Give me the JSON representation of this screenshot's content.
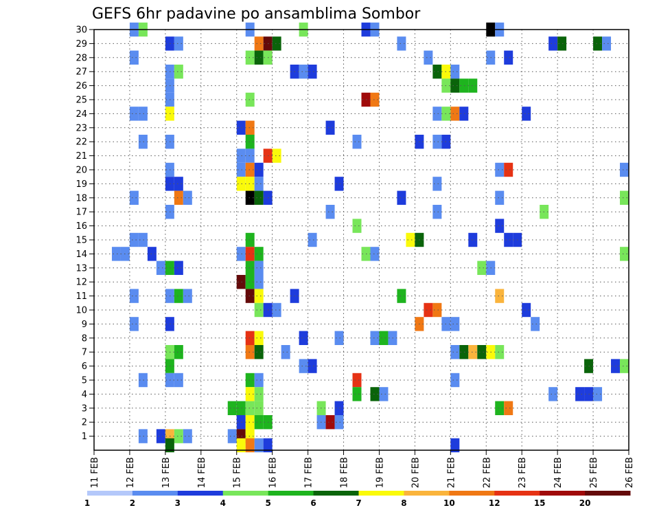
{
  "chart_data": {
    "type": "heatmap",
    "title": "GEFS 6hr padavine po ansamblima Sombor",
    "xlabel": "",
    "ylabel": "",
    "x_tick_labels": [
      "11 FEB",
      "12 FEB",
      "13 FEB",
      "14 FEB",
      "15 FEB",
      "16 FEB",
      "17 FEB",
      "18 FEB",
      "19 FEB",
      "20 FEB",
      "21 FEB",
      "22 FEB",
      "23 FEB",
      "24 FEB",
      "25 FEB",
      "26 FEB"
    ],
    "y_tick_labels": [
      "1",
      "2",
      "3",
      "4",
      "5",
      "6",
      "7",
      "8",
      "9",
      "10",
      "11",
      "12",
      "13",
      "14",
      "15",
      "16",
      "17",
      "18",
      "19",
      "20",
      "21",
      "22",
      "23",
      "24",
      "25",
      "26",
      "27",
      "28",
      "29",
      "30"
    ],
    "x_unit": "day (6-hourly steps, 4 per day)",
    "xlim": [
      0,
      15
    ],
    "ylim": [
      0,
      30
    ],
    "grid": true,
    "colorbar": {
      "placement": "bottom",
      "labels": [
        "1",
        "2",
        "3",
        "4",
        "5",
        "6",
        "7",
        "8",
        "10",
        "12",
        "15",
        "20"
      ],
      "colors": [
        "#b4c8fa",
        "#5a8cf0",
        "#1e3cdc",
        "#78e65a",
        "#1eb41e",
        "#0a640a",
        "#fafa0a",
        "#fab43c",
        "#f07814",
        "#e63214",
        "#a00a0a",
        "#640a0a"
      ]
    },
    "cells": [
      [
        1.0,
        30,
        1
      ],
      [
        1.25,
        30,
        3
      ],
      [
        4.25,
        30,
        1
      ],
      [
        5.75,
        30,
        3
      ],
      [
        7.5,
        30,
        2
      ],
      [
        7.75,
        30,
        1
      ],
      [
        11.0,
        30,
        12
      ],
      [
        11.25,
        30,
        1
      ],
      [
        2.0,
        29,
        2
      ],
      [
        2.25,
        29,
        1
      ],
      [
        4.5,
        29,
        8
      ],
      [
        4.75,
        29,
        11
      ],
      [
        5.0,
        29,
        5
      ],
      [
        8.5,
        29,
        1
      ],
      [
        12.75,
        29,
        2
      ],
      [
        13.0,
        29,
        5
      ],
      [
        14.0,
        29,
        5
      ],
      [
        14.25,
        29,
        1
      ],
      [
        1.0,
        28,
        1
      ],
      [
        4.25,
        28,
        3
      ],
      [
        4.5,
        28,
        5
      ],
      [
        4.75,
        28,
        3
      ],
      [
        9.25,
        28,
        1
      ],
      [
        11.0,
        28,
        1
      ],
      [
        11.5,
        28,
        2
      ],
      [
        2.0,
        27,
        1
      ],
      [
        2.25,
        27,
        3
      ],
      [
        5.5,
        27,
        2
      ],
      [
        5.75,
        27,
        1
      ],
      [
        6.0,
        27,
        2
      ],
      [
        9.5,
        27,
        5
      ],
      [
        9.75,
        27,
        6
      ],
      [
        10.0,
        27,
        1
      ],
      [
        2.0,
        26,
        1
      ],
      [
        9.75,
        26,
        3
      ],
      [
        10.0,
        26,
        5
      ],
      [
        10.25,
        26,
        4
      ],
      [
        10.5,
        26,
        4
      ],
      [
        2.0,
        25,
        1
      ],
      [
        4.25,
        25,
        3
      ],
      [
        7.5,
        25,
        10
      ],
      [
        7.75,
        25,
        8
      ],
      [
        1.0,
        24,
        1
      ],
      [
        1.25,
        24,
        1
      ],
      [
        2.0,
        24,
        6
      ],
      [
        9.5,
        24,
        1
      ],
      [
        9.75,
        24,
        3
      ],
      [
        10.0,
        24,
        8
      ],
      [
        10.25,
        24,
        2
      ],
      [
        12.0,
        24,
        2
      ],
      [
        4.0,
        23,
        2
      ],
      [
        4.25,
        23,
        8
      ],
      [
        6.5,
        23,
        2
      ],
      [
        1.25,
        22,
        1
      ],
      [
        2.0,
        22,
        1
      ],
      [
        4.25,
        22,
        4
      ],
      [
        7.25,
        22,
        1
      ],
      [
        9.0,
        22,
        2
      ],
      [
        9.5,
        22,
        1
      ],
      [
        9.75,
        22,
        2
      ],
      [
        4.0,
        21,
        1
      ],
      [
        4.25,
        21,
        1
      ],
      [
        4.75,
        21,
        9
      ],
      [
        5.0,
        21,
        6
      ],
      [
        2.0,
        20,
        1
      ],
      [
        4.0,
        20,
        1
      ],
      [
        4.25,
        20,
        8
      ],
      [
        4.5,
        20,
        2
      ],
      [
        11.25,
        20,
        1
      ],
      [
        11.5,
        20,
        9
      ],
      [
        14.75,
        20,
        1
      ],
      [
        2.0,
        19,
        2
      ],
      [
        2.25,
        19,
        2
      ],
      [
        4.0,
        19,
        6
      ],
      [
        4.25,
        19,
        6
      ],
      [
        4.5,
        19,
        1
      ],
      [
        6.75,
        19,
        2
      ],
      [
        9.5,
        19,
        1
      ],
      [
        1.0,
        18,
        1
      ],
      [
        2.25,
        18,
        8
      ],
      [
        2.5,
        18,
        1
      ],
      [
        4.25,
        18,
        12
      ],
      [
        4.5,
        18,
        5
      ],
      [
        4.75,
        18,
        2
      ],
      [
        8.5,
        18,
        2
      ],
      [
        11.25,
        18,
        1
      ],
      [
        14.75,
        18,
        3
      ],
      [
        2.0,
        17,
        1
      ],
      [
        6.5,
        17,
        1
      ],
      [
        9.5,
        17,
        1
      ],
      [
        12.5,
        17,
        3
      ],
      [
        7.25,
        16,
        3
      ],
      [
        11.25,
        16,
        2
      ],
      [
        1.0,
        15,
        1
      ],
      [
        1.25,
        15,
        1
      ],
      [
        4.25,
        15,
        4
      ],
      [
        6.0,
        15,
        1
      ],
      [
        8.75,
        15,
        6
      ],
      [
        9.0,
        15,
        5
      ],
      [
        10.5,
        15,
        2
      ],
      [
        11.5,
        15,
        2
      ],
      [
        11.75,
        15,
        2
      ],
      [
        0.5,
        14,
        1
      ],
      [
        0.75,
        14,
        1
      ],
      [
        1.5,
        14,
        2
      ],
      [
        4.0,
        14,
        1
      ],
      [
        4.25,
        14,
        9
      ],
      [
        4.5,
        14,
        4
      ],
      [
        7.5,
        14,
        3
      ],
      [
        7.75,
        14,
        1
      ],
      [
        14.75,
        14,
        3
      ],
      [
        1.75,
        13,
        1
      ],
      [
        2.0,
        13,
        4
      ],
      [
        2.25,
        13,
        2
      ],
      [
        4.25,
        13,
        4
      ],
      [
        4.5,
        13,
        1
      ],
      [
        10.75,
        13,
        3
      ],
      [
        11.0,
        13,
        1
      ],
      [
        4.0,
        12,
        11
      ],
      [
        4.25,
        12,
        4
      ],
      [
        4.5,
        12,
        1
      ],
      [
        1.0,
        11,
        1
      ],
      [
        2.0,
        11,
        1
      ],
      [
        2.25,
        11,
        4
      ],
      [
        2.5,
        11,
        1
      ],
      [
        4.25,
        11,
        11
      ],
      [
        4.5,
        11,
        6
      ],
      [
        5.5,
        11,
        2
      ],
      [
        8.5,
        11,
        4
      ],
      [
        11.25,
        11,
        7
      ],
      [
        4.5,
        10,
        3
      ],
      [
        4.75,
        10,
        2
      ],
      [
        5.0,
        10,
        1
      ],
      [
        9.25,
        10,
        9
      ],
      [
        9.5,
        10,
        8
      ],
      [
        12.0,
        10,
        2
      ],
      [
        1.0,
        9,
        1
      ],
      [
        2.0,
        9,
        2
      ],
      [
        9.0,
        9,
        8
      ],
      [
        9.75,
        9,
        1
      ],
      [
        10.0,
        9,
        1
      ],
      [
        12.25,
        9,
        1
      ],
      [
        4.25,
        8,
        9
      ],
      [
        4.5,
        8,
        6
      ],
      [
        5.75,
        8,
        2
      ],
      [
        6.75,
        8,
        1
      ],
      [
        7.75,
        8,
        1
      ],
      [
        8.0,
        8,
        4
      ],
      [
        8.25,
        8,
        1
      ],
      [
        2.0,
        7,
        3
      ],
      [
        2.25,
        7,
        4
      ],
      [
        4.25,
        7,
        8
      ],
      [
        4.5,
        7,
        5
      ],
      [
        5.25,
        7,
        1
      ],
      [
        10.0,
        7,
        1
      ],
      [
        10.25,
        7,
        5
      ],
      [
        10.5,
        7,
        7
      ],
      [
        10.75,
        7,
        5
      ],
      [
        11.0,
        7,
        6
      ],
      [
        11.25,
        7,
        3
      ],
      [
        2.0,
        6,
        4
      ],
      [
        5.75,
        6,
        1
      ],
      [
        6.0,
        6,
        2
      ],
      [
        13.75,
        6,
        5
      ],
      [
        14.5,
        6,
        2
      ],
      [
        14.75,
        6,
        3
      ],
      [
        1.25,
        5,
        1
      ],
      [
        2.0,
        5,
        1
      ],
      [
        2.25,
        5,
        1
      ],
      [
        4.25,
        5,
        4
      ],
      [
        4.5,
        5,
        1
      ],
      [
        7.25,
        5,
        9
      ],
      [
        10.0,
        5,
        1
      ],
      [
        4.25,
        4,
        6
      ],
      [
        4.5,
        4,
        3
      ],
      [
        7.25,
        4,
        4
      ],
      [
        7.75,
        4,
        5
      ],
      [
        8.0,
        4,
        1
      ],
      [
        12.75,
        4,
        1
      ],
      [
        13.5,
        4,
        2
      ],
      [
        13.75,
        4,
        2
      ],
      [
        14.0,
        4,
        1
      ],
      [
        3.75,
        3,
        4
      ],
      [
        4.0,
        3,
        4
      ],
      [
        4.25,
        3,
        3
      ],
      [
        4.5,
        3,
        3
      ],
      [
        6.25,
        3,
        3
      ],
      [
        6.75,
        3,
        2
      ],
      [
        11.25,
        3,
        4
      ],
      [
        11.5,
        3,
        8
      ],
      [
        4.0,
        2,
        2
      ],
      [
        4.25,
        2,
        6
      ],
      [
        4.5,
        2,
        4
      ],
      [
        4.75,
        2,
        4
      ],
      [
        6.25,
        2,
        1
      ],
      [
        6.5,
        2,
        10
      ],
      [
        6.75,
        2,
        1
      ],
      [
        1.25,
        1,
        1
      ],
      [
        1.75,
        1,
        2
      ],
      [
        2.0,
        1,
        7
      ],
      [
        2.25,
        1,
        3
      ],
      [
        2.5,
        1,
        1
      ],
      [
        3.75,
        1,
        1
      ],
      [
        4.0,
        1,
        11
      ],
      [
        4.25,
        1,
        6
      ],
      [
        2.0,
        0.35,
        5
      ],
      [
        4.0,
        0.35,
        6
      ],
      [
        4.25,
        0.35,
        8
      ],
      [
        4.5,
        0.35,
        1
      ],
      [
        4.75,
        0.35,
        2
      ],
      [
        10.0,
        0.35,
        2
      ]
    ]
  }
}
